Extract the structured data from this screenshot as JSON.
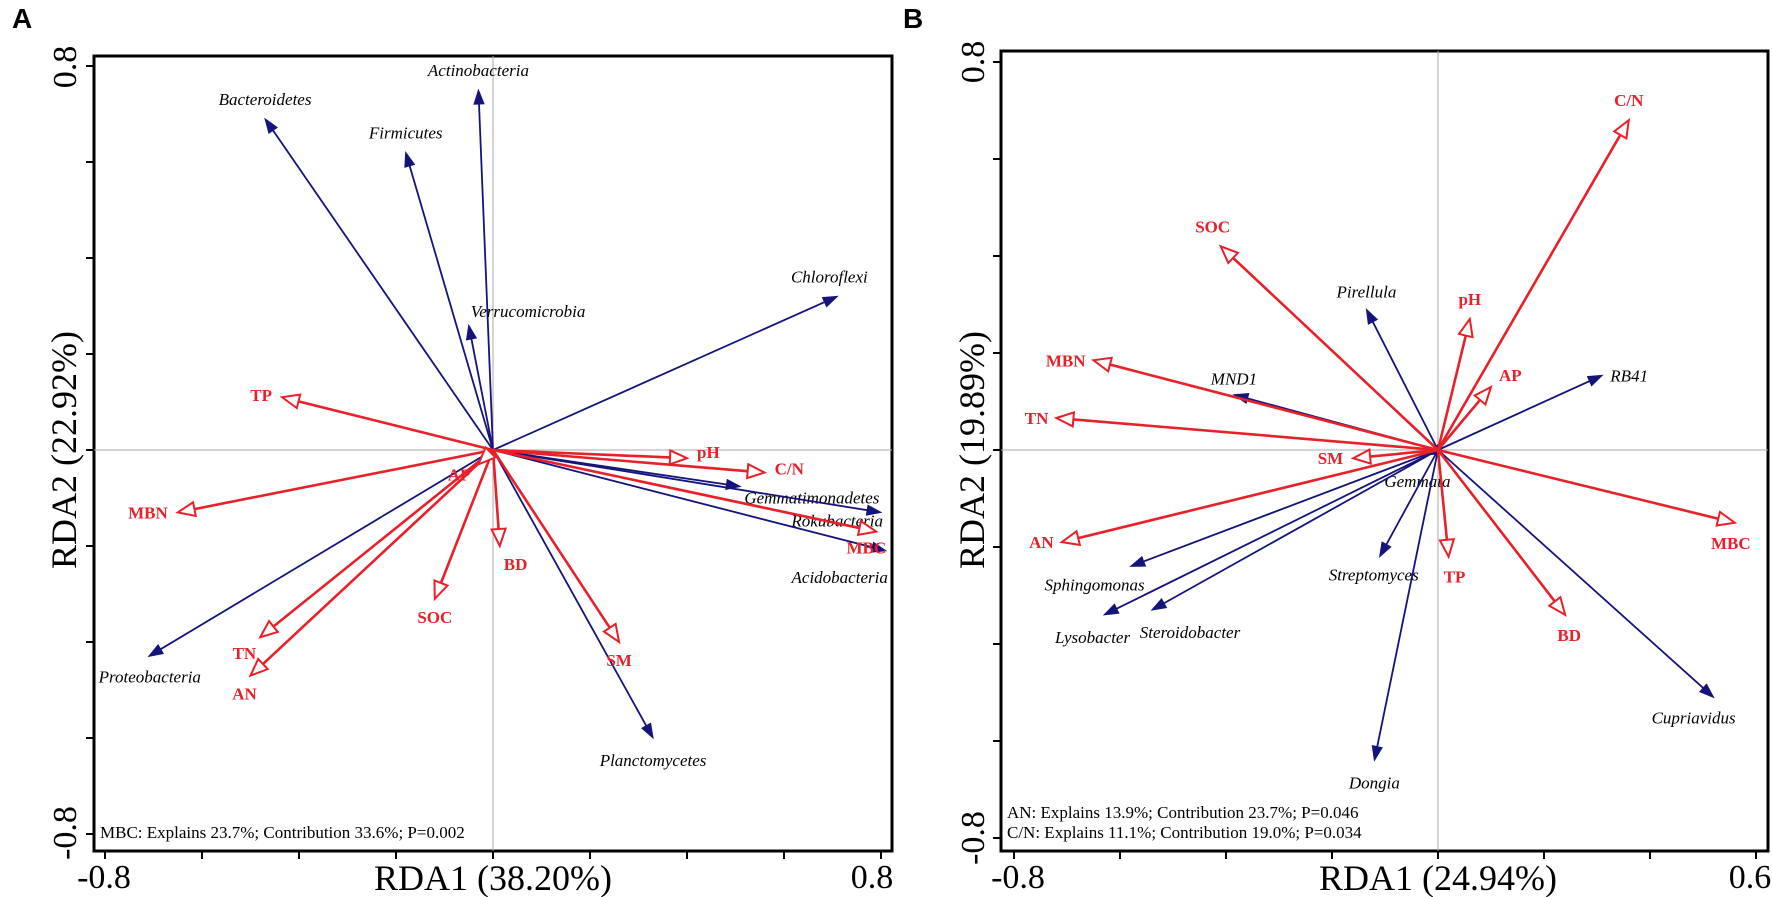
{
  "colors": {
    "env": "#e8202a",
    "species": "#14147a",
    "zero_line": "#aaaaaa",
    "frame": "#000000"
  },
  "chart_data": [
    {
      "type": "scatter",
      "subtype": "rda-biplot",
      "panel": "A",
      "xlabel": "RDA1 (38.20%)",
      "ylabel": "RDA2 (22.92%)",
      "xlim": [
        -0.8,
        0.8
      ],
      "ylim": [
        -0.8,
        0.8
      ],
      "x_tick_labels": [
        "-0.8",
        "0.8"
      ],
      "y_tick_labels": [
        "0.8",
        "-0.8"
      ],
      "x_ticks": [
        -0.8,
        -0.6,
        -0.4,
        -0.2,
        0,
        0.2,
        0.4,
        0.6,
        0.8
      ],
      "y_ticks": [
        -0.8,
        -0.6,
        -0.4,
        -0.2,
        0,
        0.2,
        0.4,
        0.6,
        0.8
      ],
      "annotations": [
        "MBC: Explains 23.7%; Contribution 33.6%; P=0.002"
      ],
      "species": [
        {
          "name": "Actinobacteria",
          "x": -0.03,
          "y": 0.75
        },
        {
          "name": "Bacteroidetes",
          "x": -0.47,
          "y": 0.69
        },
        {
          "name": "Firmicutes",
          "x": -0.18,
          "y": 0.62
        },
        {
          "name": "Verrucomicrobia",
          "x": -0.05,
          "y": 0.26
        },
        {
          "name": "Chloroflexi",
          "x": 0.71,
          "y": 0.32
        },
        {
          "name": "Gemmatimonadetes",
          "x": 0.51,
          "y": -0.076
        },
        {
          "name": "Rokubacteria",
          "x": 0.8,
          "y": -0.13
        },
        {
          "name": "Acidobacteria",
          "x": 0.81,
          "y": -0.21
        },
        {
          "name": "Planctomycetes",
          "x": 0.33,
          "y": -0.6
        },
        {
          "name": "Proteobacteria",
          "x": -0.71,
          "y": -0.43
        }
      ],
      "env": [
        {
          "name": "TP",
          "x": -0.435,
          "y": 0.11
        },
        {
          "name": "MBN",
          "x": -0.65,
          "y": -0.13
        },
        {
          "name": "pH",
          "x": 0.4,
          "y": -0.017
        },
        {
          "name": "C/N",
          "x": 0.56,
          "y": -0.047
        },
        {
          "name": "MBC",
          "x": 0.79,
          "y": -0.17
        },
        {
          "name": "BD",
          "x": 0.014,
          "y": -0.2
        },
        {
          "name": "SOC",
          "x": -0.12,
          "y": -0.31
        },
        {
          "name": "SM",
          "x": 0.26,
          "y": -0.4
        },
        {
          "name": "TN",
          "x": -0.48,
          "y": -0.39
        },
        {
          "name": "AN",
          "x": -0.5,
          "y": -0.47
        },
        {
          "name": "AP",
          "x": -0.03,
          "y": -0.03
        }
      ]
    },
    {
      "type": "scatter",
      "subtype": "rda-biplot",
      "panel": "B",
      "xlabel": "RDA1 (24.94%)",
      "ylabel": "RDA2 (19.89%)",
      "xlim": [
        -0.8,
        0.6
      ],
      "ylim": [
        -0.8,
        0.8
      ],
      "x_tick_labels": [
        "-0.8",
        "0.6"
      ],
      "y_tick_labels": [
        "0.8",
        "-0.8"
      ],
      "x_ticks": [
        -0.8,
        -0.6,
        -0.4,
        -0.2,
        0,
        0.2,
        0.4,
        0.6
      ],
      "y_ticks": [
        -0.8,
        -0.6,
        -0.4,
        -0.2,
        0,
        0.2,
        0.4,
        0.6,
        0.8
      ],
      "annotations": [
        "AN: Explains 13.9%; Contribution 23.7%; P=0.046",
        "C/N: Explains 11.1%; Contribution 19.0%; P=0.034"
      ],
      "species": [
        {
          "name": "Pirellula",
          "x": -0.135,
          "y": 0.29
        },
        {
          "name": "MND1",
          "x": -0.385,
          "y": 0.114
        },
        {
          "name": "RB41",
          "x": 0.31,
          "y": 0.154
        },
        {
          "name": "Gemmata",
          "x": -0.02,
          "y": -0.01
        },
        {
          "name": "Sphingomonas",
          "x": -0.58,
          "y": -0.24
        },
        {
          "name": "Lysobacter",
          "x": -0.63,
          "y": -0.34
        },
        {
          "name": "Steroidobacter",
          "x": -0.54,
          "y": -0.33
        },
        {
          "name": "Streptomyces",
          "x": -0.11,
          "y": -0.22
        },
        {
          "name": "Dongia",
          "x": -0.12,
          "y": -0.64
        },
        {
          "name": "Cupriavidus",
          "x": 0.52,
          "y": -0.51
        }
      ],
      "env": [
        {
          "name": "C/N",
          "x": 0.36,
          "y": 0.68
        },
        {
          "name": "SOC",
          "x": -0.41,
          "y": 0.42
        },
        {
          "name": "pH",
          "x": 0.06,
          "y": 0.27
        },
        {
          "name": "AP",
          "x": 0.1,
          "y": 0.13
        },
        {
          "name": "MBN",
          "x": -0.65,
          "y": 0.185
        },
        {
          "name": "TN",
          "x": -0.72,
          "y": 0.066
        },
        {
          "name": "SM",
          "x": -0.16,
          "y": -0.017
        },
        {
          "name": "AN",
          "x": -0.71,
          "y": -0.19
        },
        {
          "name": "TP",
          "x": 0.02,
          "y": -0.22
        },
        {
          "name": "BD",
          "x": 0.24,
          "y": -0.34
        },
        {
          "name": "MBC",
          "x": 0.56,
          "y": -0.15
        }
      ]
    }
  ]
}
